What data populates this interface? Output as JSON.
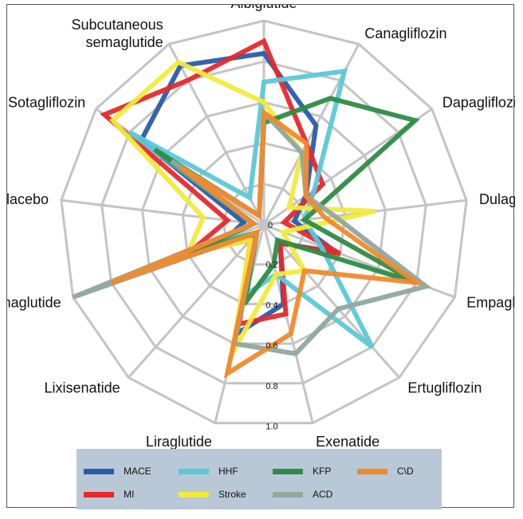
{
  "chart_data": {
    "type": "radar",
    "title": "",
    "axes": [
      "Albiglutide",
      "Canagliflozin",
      "Dapagliflozin",
      "Dulaglutide",
      "Empagliflozin",
      "Ertugliflozin",
      "Exenatide",
      "Liraglutide",
      "Lixisenatide",
      "Oral semaglutide",
      "Placebo",
      "Sotagliflozin",
      "Subcutaneous semaglutide"
    ],
    "axis_display": [
      "Albiglutide",
      "Canagliflozin",
      "Dapagliflozin",
      "Dulaglutide",
      "Empagliflozin",
      "Ertugliflozin",
      "Exenatide",
      "Liraglutide",
      "Lixisenatide",
      "Oral semaglutide",
      "Placebo",
      "Sotagliflozin",
      "Subcutaneous\nsemaglutide"
    ],
    "radial_ticks": [
      "0",
      "0.2",
      "0.4",
      "0.6",
      "0.8",
      "1.0"
    ],
    "rmin": 0,
    "rmax": 1.0,
    "grid": true,
    "legend_position": "bottom",
    "series": [
      {
        "name": "MACE",
        "color": "#2a5caa",
        "values": [
          0.84,
          0.55,
          0.25,
          0.15,
          0.38,
          0.12,
          0.4,
          0.55,
          0.08,
          0.2,
          0.1,
          0.73,
          0.88
        ]
      },
      {
        "name": "MI",
        "color": "#e8282b",
        "values": [
          0.9,
          0.45,
          0.35,
          0.1,
          0.4,
          0.12,
          0.45,
          0.5,
          0.1,
          0.4,
          0.18,
          0.95,
          0.8
        ]
      },
      {
        "name": "HHF",
        "color": "#5bc8d8",
        "values": [
          0.7,
          0.85,
          0.3,
          0.2,
          0.3,
          0.8,
          0.25,
          0.35,
          0.05,
          0.25,
          0.05,
          0.8,
          0.15
        ]
      },
      {
        "name": "Stroke",
        "color": "#f2ea3c",
        "values": [
          0.6,
          0.4,
          0.15,
          0.55,
          0.1,
          0.3,
          0.25,
          0.65,
          0.1,
          0.4,
          0.3,
          0.9,
          0.9
        ]
      },
      {
        "name": "KFP",
        "color": "#2e8b45",
        "values": [
          0.5,
          0.7,
          0.9,
          0.2,
          0.8,
          0.1,
          0.2,
          0.4,
          0.05,
          0.4,
          0.05,
          0.65,
          0.05
        ]
      },
      {
        "name": "ACD",
        "color": "#8fa8a0",
        "values": [
          0.55,
          0.4,
          0.25,
          0.35,
          0.85,
          0.55,
          0.65,
          0.6,
          0.05,
          1.0,
          0.05,
          0.55,
          0.05
        ]
      },
      {
        "name": "C\\D",
        "color": "#f08a2c",
        "values": [
          0.55,
          0.45,
          0.25,
          0.3,
          0.8,
          0.3,
          0.55,
          0.75,
          0.05,
          0.8,
          0.05,
          0.5,
          0.05
        ]
      }
    ]
  },
  "legend": {
    "items": [
      {
        "label": "MACE",
        "color": "#2a5caa"
      },
      {
        "label": "HHF",
        "color": "#5bc8d8"
      },
      {
        "label": "KFP",
        "color": "#2e8b45"
      },
      {
        "label": "C\\D",
        "color": "#f08a2c"
      },
      {
        "label": "MI",
        "color": "#e8282b"
      },
      {
        "label": "Stroke",
        "color": "#f2ea3c"
      },
      {
        "label": "ACD",
        "color": "#8fa8a0"
      }
    ]
  }
}
